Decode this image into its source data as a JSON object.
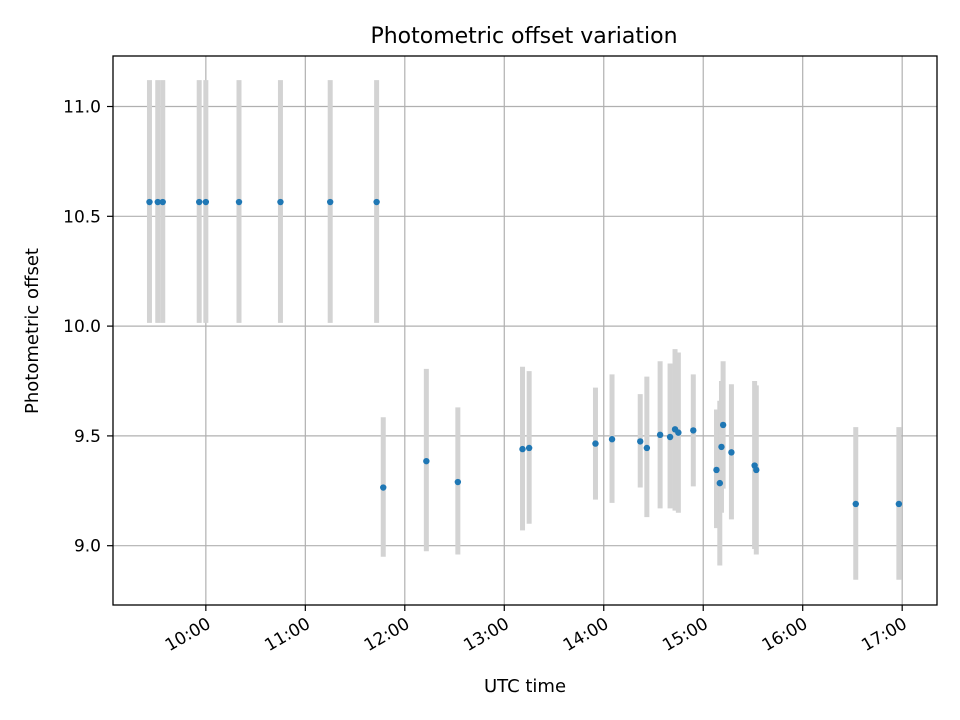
{
  "chart_data": {
    "type": "scatter",
    "title": "Photometric offset variation",
    "xlabel": "UTC time",
    "ylabel": "Photometric offset",
    "xlim": [
      "09:04",
      "17:21"
    ],
    "ylim": [
      8.73,
      11.23
    ],
    "x_ticks": [
      "10:00",
      "11:00",
      "12:00",
      "13:00",
      "14:00",
      "15:00",
      "16:00",
      "17:00"
    ],
    "y_ticks": [
      "9.0",
      "9.5",
      "10.0",
      "10.5",
      "11.0"
    ],
    "grid": true,
    "colors": {
      "point": "#1f77b4",
      "error_bar": "#d3d3d3"
    },
    "points": [
      {
        "time": "09:26",
        "y": 10.565,
        "y_low": 10.015,
        "y_high": 11.12
      },
      {
        "time": "09:31",
        "y": 10.565,
        "y_low": 10.015,
        "y_high": 11.12
      },
      {
        "time": "09:34",
        "y": 10.565,
        "y_low": 10.015,
        "y_high": 11.12
      },
      {
        "time": "09:56",
        "y": 10.565,
        "y_low": 10.015,
        "y_high": 11.12
      },
      {
        "time": "10:00",
        "y": 10.565,
        "y_low": 10.015,
        "y_high": 11.12
      },
      {
        "time": "10:20",
        "y": 10.565,
        "y_low": 10.015,
        "y_high": 11.12
      },
      {
        "time": "10:45",
        "y": 10.565,
        "y_low": 10.015,
        "y_high": 11.12
      },
      {
        "time": "11:15",
        "y": 10.565,
        "y_low": 10.015,
        "y_high": 11.12
      },
      {
        "time": "11:43",
        "y": 10.565,
        "y_low": 10.015,
        "y_high": 11.12
      },
      {
        "time": "11:47",
        "y": 9.265,
        "y_low": 8.95,
        "y_high": 9.585
      },
      {
        "time": "12:13",
        "y": 9.385,
        "y_low": 8.975,
        "y_high": 9.805
      },
      {
        "time": "12:32",
        "y": 9.29,
        "y_low": 8.96,
        "y_high": 9.63
      },
      {
        "time": "13:11",
        "y": 9.44,
        "y_low": 9.07,
        "y_high": 9.815
      },
      {
        "time": "13:15",
        "y": 9.445,
        "y_low": 9.1,
        "y_high": 9.795
      },
      {
        "time": "13:55",
        "y": 9.465,
        "y_low": 9.21,
        "y_high": 9.72
      },
      {
        "time": "14:05",
        "y": 9.485,
        "y_low": 9.195,
        "y_high": 9.78
      },
      {
        "time": "14:22",
        "y": 9.475,
        "y_low": 9.265,
        "y_high": 9.69
      },
      {
        "time": "14:26",
        "y": 9.445,
        "y_low": 9.13,
        "y_high": 9.77
      },
      {
        "time": "14:34",
        "y": 9.505,
        "y_low": 9.17,
        "y_high": 9.84
      },
      {
        "time": "14:40",
        "y": 9.495,
        "y_low": 9.17,
        "y_high": 9.83
      },
      {
        "time": "14:43",
        "y": 9.53,
        "y_low": 9.16,
        "y_high": 9.895
      },
      {
        "time": "14:45",
        "y": 9.515,
        "y_low": 9.15,
        "y_high": 9.88
      },
      {
        "time": "14:54",
        "y": 9.525,
        "y_low": 9.27,
        "y_high": 9.78
      },
      {
        "time": "15:08",
        "y": 9.345,
        "y_low": 9.08,
        "y_high": 9.62
      },
      {
        "time": "15:10",
        "y": 9.285,
        "y_low": 8.91,
        "y_high": 9.66
      },
      {
        "time": "15:11",
        "y": 9.45,
        "y_low": 9.15,
        "y_high": 9.75
      },
      {
        "time": "15:12",
        "y": 9.55,
        "y_low": 9.26,
        "y_high": 9.84
      },
      {
        "time": "15:17",
        "y": 9.425,
        "y_low": 9.12,
        "y_high": 9.735
      },
      {
        "time": "15:31",
        "y": 9.365,
        "y_low": 8.985,
        "y_high": 9.75
      },
      {
        "time": "15:32",
        "y": 9.345,
        "y_low": 8.96,
        "y_high": 9.73
      },
      {
        "time": "16:32",
        "y": 9.19,
        "y_low": 8.845,
        "y_high": 9.54
      },
      {
        "time": "16:58",
        "y": 9.19,
        "y_low": 8.845,
        "y_high": 9.54
      }
    ]
  }
}
